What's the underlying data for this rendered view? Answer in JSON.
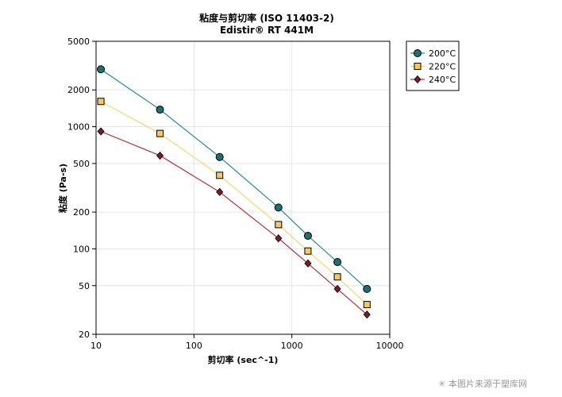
{
  "chart_data": {
    "type": "line",
    "title": "粘度与剪切率 (ISO 11403-2)",
    "subtitle": "Edistir® RT 441M",
    "xlabel": "剪切率 (sec^-1)",
    "ylabel": "粘度 (Pa-s)",
    "xscale": "log",
    "yscale": "log",
    "xlim": [
      10,
      10000
    ],
    "ylim": [
      20,
      5000
    ],
    "x_ticks": [
      10,
      100,
      1000,
      10000
    ],
    "x_tick_labels": [
      "10",
      "100",
      "1000",
      "10000"
    ],
    "y_ticks": [
      20,
      50,
      100,
      200,
      500,
      1000,
      2000,
      5000
    ],
    "y_tick_labels": [
      "20",
      "50",
      "100",
      "200",
      "500",
      "1000",
      "2000",
      "5000"
    ],
    "grid": true,
    "legend_position": "outside-top-right",
    "series": [
      {
        "name": "200°C",
        "color": "#2a8a99",
        "marker": "circle",
        "marker_color": "#1f6f6f",
        "points": [
          [
            11.2,
            2950
          ],
          [
            45,
            1380
          ],
          [
            183,
            565
          ],
          [
            730,
            218
          ],
          [
            1460,
            128
          ],
          [
            2920,
            78
          ],
          [
            5850,
            47
          ]
        ]
      },
      {
        "name": "220°C",
        "color": "#f4d56e",
        "marker": "square",
        "marker_color": "#f6c768",
        "points": [
          [
            11.2,
            1610
          ],
          [
            45,
            880
          ],
          [
            183,
            400
          ],
          [
            730,
            158
          ],
          [
            1460,
            96
          ],
          [
            2920,
            59
          ],
          [
            5850,
            35
          ]
        ]
      },
      {
        "name": "240°C",
        "color": "#b03040",
        "marker": "diamond",
        "marker_color": "#7a1a2a",
        "points": [
          [
            11.2,
            915
          ],
          [
            45,
            580
          ],
          [
            183,
            292
          ],
          [
            730,
            122
          ],
          [
            1460,
            76
          ],
          [
            2920,
            47
          ],
          [
            5850,
            29
          ]
        ]
      }
    ]
  },
  "watermark": "本图片来源于塑库网"
}
